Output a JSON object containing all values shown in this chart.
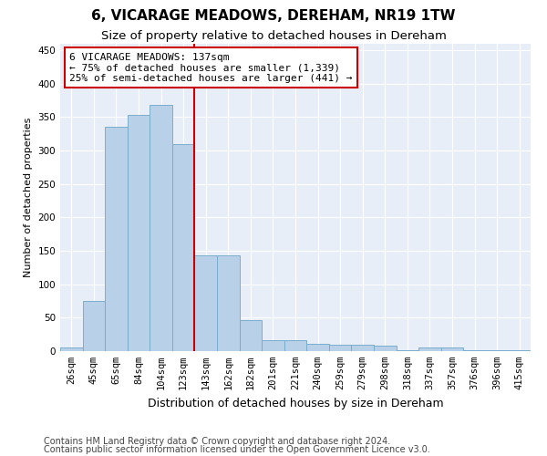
{
  "title": "6, VICARAGE MEADOWS, DEREHAM, NR19 1TW",
  "subtitle": "Size of property relative to detached houses in Dereham",
  "xlabel": "Distribution of detached houses by size in Dereham",
  "ylabel": "Number of detached properties",
  "bin_labels": [
    "26sqm",
    "45sqm",
    "65sqm",
    "84sqm",
    "104sqm",
    "123sqm",
    "143sqm",
    "162sqm",
    "182sqm",
    "201sqm",
    "221sqm",
    "240sqm",
    "259sqm",
    "279sqm",
    "298sqm",
    "318sqm",
    "337sqm",
    "357sqm",
    "376sqm",
    "396sqm",
    "415sqm"
  ],
  "bar_heights": [
    5,
    75,
    335,
    353,
    368,
    310,
    143,
    143,
    46,
    17,
    17,
    11,
    9,
    9,
    8,
    2,
    6,
    6,
    2,
    1,
    1
  ],
  "bar_color": "#b8d0e8",
  "bar_edgecolor": "#7aadcc",
  "background_color": "#e8eef8",
  "vline_x_index": 5.5,
  "vline_color": "#cc0000",
  "annotation_text": "6 VICARAGE MEADOWS: 137sqm\n← 75% of detached houses are smaller (1,339)\n25% of semi-detached houses are larger (441) →",
  "annotation_box_edgecolor": "#cc0000",
  "annotation_box_facecolor": "#ffffff",
  "footer1": "Contains HM Land Registry data © Crown copyright and database right 2024.",
  "footer2": "Contains public sector information licensed under the Open Government Licence v3.0.",
  "yticks": [
    0,
    50,
    100,
    150,
    200,
    250,
    300,
    350,
    400,
    450
  ],
  "ylim": [
    0,
    460
  ],
  "title_fontsize": 11,
  "subtitle_fontsize": 9.5,
  "xlabel_fontsize": 9,
  "ylabel_fontsize": 8,
  "tick_fontsize": 7.5,
  "annotation_fontsize": 8,
  "footer_fontsize": 7
}
